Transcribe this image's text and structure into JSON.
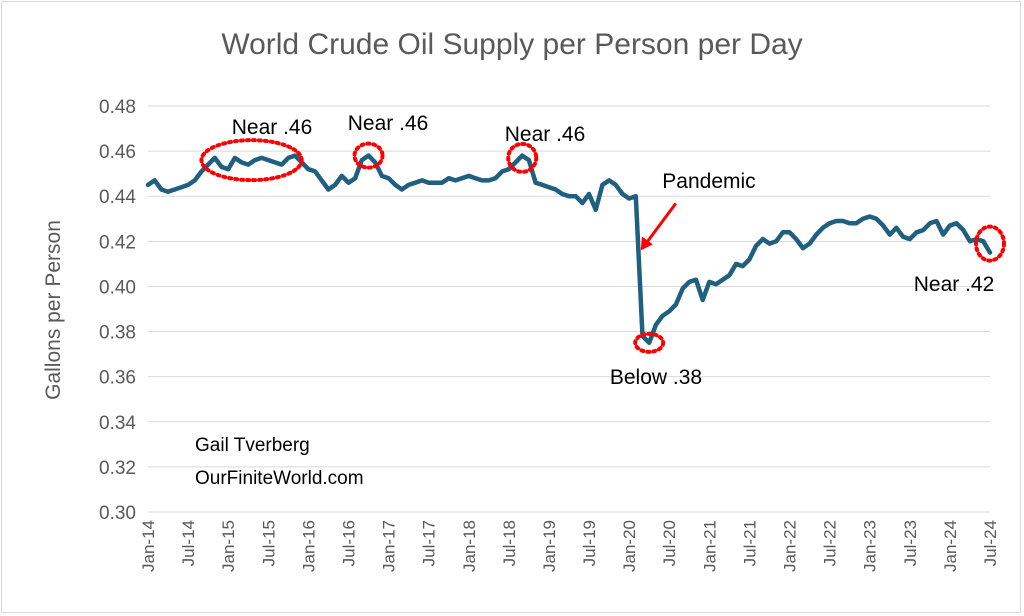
{
  "chart_data": {
    "type": "line",
    "title": "World Crude Oil Supply per Person per Day",
    "ylabel": "Gallons per Person",
    "xlabel": "",
    "ylim": [
      0.3,
      0.48
    ],
    "yticks": [
      "0.30",
      "0.32",
      "0.34",
      "0.36",
      "0.38",
      "0.40",
      "0.42",
      "0.44",
      "0.46",
      "0.48"
    ],
    "xticks": [
      "Jan-14",
      "Jul-14",
      "Jan-15",
      "Jul-15",
      "Jan-16",
      "Jul-16",
      "Jan-17",
      "Jul-17",
      "Jan-18",
      "Jul-18",
      "Jan-19",
      "Jul-19",
      "Jan-20",
      "Jul-20",
      "Jan-21",
      "Jul-21",
      "Jan-22",
      "Jul-22",
      "Jan-23",
      "Jul-23",
      "Jan-24",
      "Jul-24"
    ],
    "grid": true,
    "line_color": "#1f5f7f",
    "series": [
      {
        "values": [
          0.445,
          0.447,
          0.443,
          0.442,
          0.443,
          0.444,
          0.445,
          0.447,
          0.451,
          0.454,
          0.457,
          0.453,
          0.452,
          0.457,
          0.455,
          0.454,
          0.456,
          0.457,
          0.456,
          0.455,
          0.454,
          0.457,
          0.458,
          0.455,
          0.452,
          0.451,
          0.447,
          0.443,
          0.445,
          0.449,
          0.446,
          0.448,
          0.456,
          0.458,
          0.455,
          0.449,
          0.448,
          0.445,
          0.443,
          0.445,
          0.446,
          0.447,
          0.446,
          0.446,
          0.446,
          0.448,
          0.447,
          0.448,
          0.449,
          0.448,
          0.447,
          0.447,
          0.448,
          0.451,
          0.452,
          0.455,
          0.458,
          0.456,
          0.446,
          0.445,
          0.444,
          0.443,
          0.441,
          0.44,
          0.44,
          0.437,
          0.441,
          0.434,
          0.445,
          0.447,
          0.445,
          0.441,
          0.439,
          0.44,
          0.378,
          0.375,
          0.383,
          0.387,
          0.389,
          0.392,
          0.399,
          0.402,
          0.403,
          0.394,
          0.402,
          0.401,
          0.403,
          0.405,
          0.41,
          0.409,
          0.412,
          0.418,
          0.421,
          0.419,
          0.42,
          0.424,
          0.424,
          0.421,
          0.417,
          0.419,
          0.423,
          0.426,
          0.428,
          0.429,
          0.429,
          0.428,
          0.428,
          0.43,
          0.431,
          0.43,
          0.427,
          0.423,
          0.426,
          0.422,
          0.421,
          0.424,
          0.425,
          0.428,
          0.429,
          0.423,
          0.427,
          0.428,
          0.425,
          0.42,
          0.421,
          0.42,
          0.415
        ]
      }
    ],
    "annotations": [
      {
        "text": "Near .46"
      },
      {
        "text": "Near .46"
      },
      {
        "text": "Near .46"
      },
      {
        "text": "Pandemic"
      },
      {
        "text": "Below .38"
      },
      {
        "text": "Near .42"
      }
    ],
    "credit": [
      "Gail Tverberg",
      "OurFiniteWorld.com"
    ],
    "highlight_color": "#ff0000"
  }
}
